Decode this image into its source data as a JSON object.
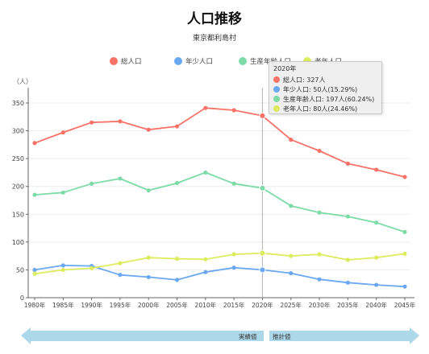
{
  "title": "人口推移",
  "subtitle": "東京都利島村",
  "yunit": "（人）",
  "colors": {
    "total": "#f87268",
    "young": "#6ba8f2",
    "working": "#7ddba8",
    "elderly": "#dcec5c",
    "band": "#add8ea",
    "cursor": "#bbbbbb"
  },
  "legend": [
    "総人口",
    "年少人口",
    "生産年齢人口",
    "老年人口"
  ],
  "tooltip": {
    "title": "2020年",
    "rows": [
      "総人口: 327人",
      "年少人口: 50人(15.29%)",
      "生産年齢人口: 197人(60.24%)",
      "老年人口: 80人(24.46%)"
    ]
  },
  "bands": {
    "actual": "実績値",
    "projected": "推計値"
  },
  "chart_data": {
    "type": "line",
    "title": "人口推移",
    "subtitle": "東京都利島村",
    "ylabel": "（人）",
    "ylim": [
      0,
      350
    ],
    "yticks": [
      0,
      50,
      100,
      150,
      200,
      250,
      300,
      350
    ],
    "categories": [
      "1980年",
      "1985年",
      "1990年",
      "1995年",
      "2000年",
      "2005年",
      "2010年",
      "2015年",
      "2020年",
      "2025年",
      "2030年",
      "2035年",
      "2040年",
      "2045年"
    ],
    "highlight": "2020年",
    "series": [
      {
        "name": "総人口",
        "values": [
          278,
          297,
          315,
          317,
          302,
          308,
          341,
          337,
          327,
          284,
          264,
          241,
          230,
          217
        ]
      },
      {
        "name": "年少人口",
        "values": [
          50,
          58,
          57,
          41,
          37,
          32,
          46,
          54,
          50,
          44,
          33,
          27,
          23,
          20
        ]
      },
      {
        "name": "生産年齢人口",
        "values": [
          185,
          189,
          205,
          214,
          193,
          206,
          225,
          205,
          197,
          165,
          153,
          146,
          135,
          118
        ]
      },
      {
        "name": "老年人口",
        "values": [
          43,
          50,
          53,
          62,
          72,
          70,
          69,
          78,
          80,
          75,
          78,
          68,
          72,
          79
        ]
      }
    ]
  }
}
